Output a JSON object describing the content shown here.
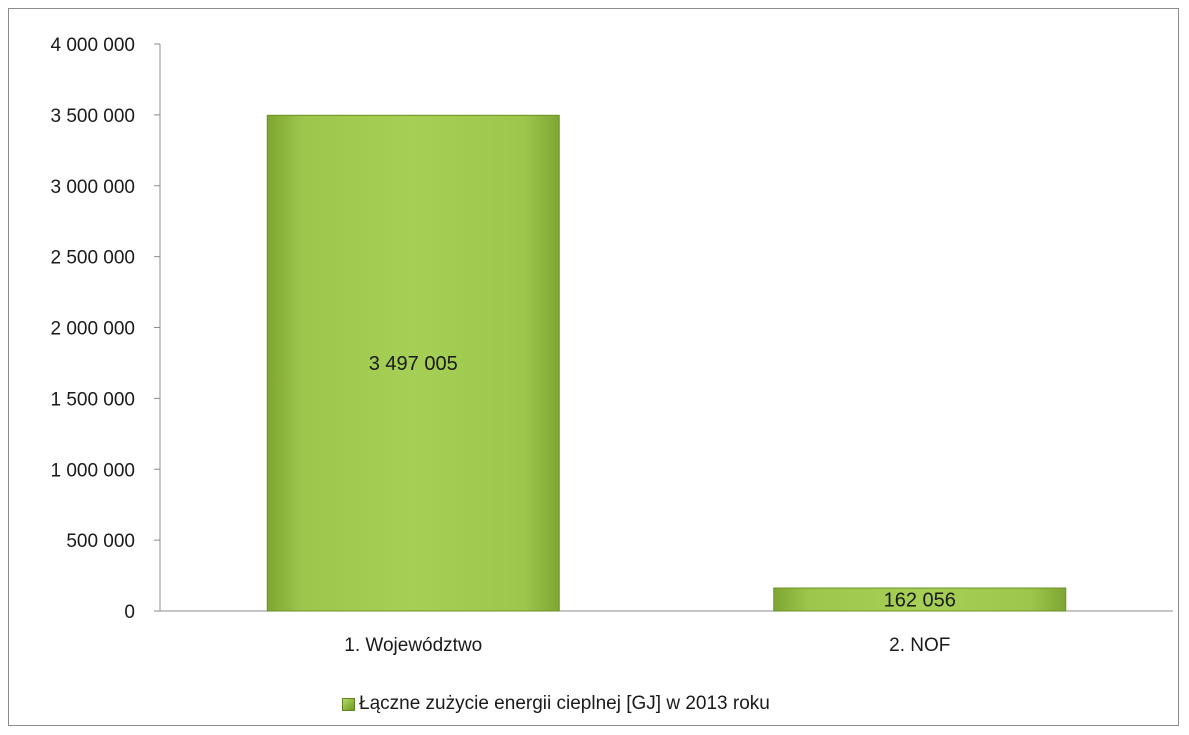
{
  "chart_data": {
    "type": "bar",
    "categories": [
      "1. Województwo",
      "2. NOF"
    ],
    "series": [
      {
        "name": "Łączne zużycie energii cieplnej [GJ] w 2013 roku",
        "values": [
          3497005,
          162056
        ],
        "data_labels": [
          "3 497 005",
          "162 056"
        ]
      }
    ],
    "ylim": [
      0,
      4000000
    ],
    "yticks": [
      0,
      500000,
      1000000,
      1500000,
      2000000,
      2500000,
      3000000,
      3500000,
      4000000
    ],
    "ytick_labels": [
      "0",
      "500 000",
      "1 000 000",
      "1 500 000",
      "2 000 000",
      "2 500 000",
      "3 000 000",
      "3 500 000",
      "4 000 000"
    ],
    "grid": false,
    "legend_position": "bottom",
    "bar_color": "#8cb63c"
  },
  "legend": {
    "label": "Łączne zużycie energii cieplnej [GJ] w 2013 roku"
  }
}
